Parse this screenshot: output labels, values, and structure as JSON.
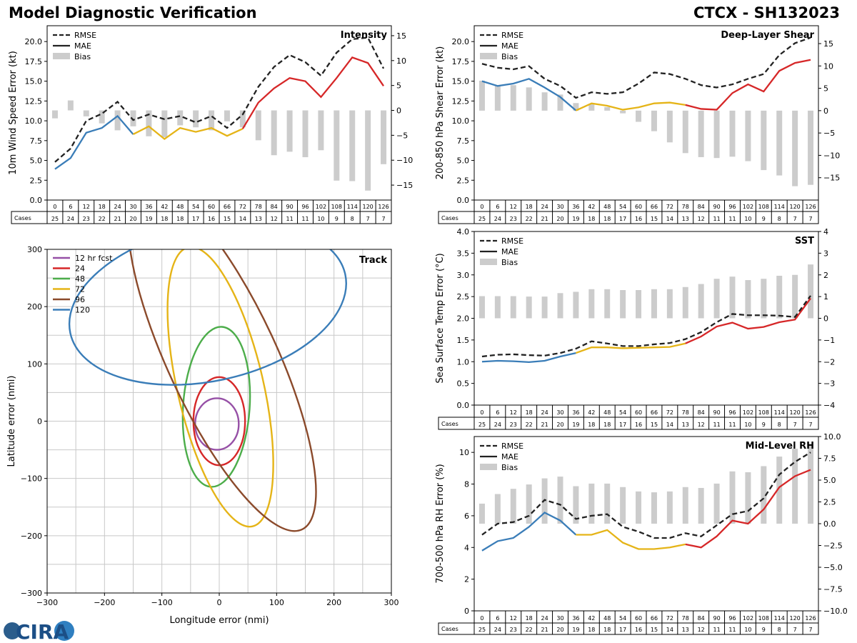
{
  "header": {
    "title": "Model Diagnostic Verification",
    "storm": "CTCX - SH132023"
  },
  "logo": {
    "text": "CIRA"
  },
  "colors": {
    "rmse": "#222222",
    "bias": "#cccccc",
    "blue": "#3a7db8",
    "yellow": "#e5b417",
    "red": "#d62728",
    "purple": "#9650a6",
    "green": "#4cad4a",
    "brown": "#8b4a2b",
    "grid": "#c8c8c8"
  },
  "chart_data": [
    {
      "id": "intensity",
      "type": "line",
      "title": "Intensity",
      "ylabel": "10m Wind Speed Error (kt)",
      "ylim": [
        0,
        22
      ],
      "yticks": [
        0,
        2.5,
        5,
        7.5,
        10,
        12.5,
        15,
        17.5,
        20
      ],
      "ytick_labels": [
        "0.0",
        "2.5",
        "5.0",
        "7.5",
        "10.0",
        "12.5",
        "15.0",
        "17.5",
        "20.0"
      ],
      "y2lim": [
        -18,
        17
      ],
      "y2ticks": [
        -15,
        -10,
        -5,
        0,
        5,
        10,
        15
      ],
      "y2tick_labels": [
        "−15",
        "−10",
        "−5",
        "0",
        "5",
        "10",
        "15"
      ],
      "legend": [
        "RMSE",
        "MAE",
        "Bias"
      ],
      "x": [
        0,
        6,
        12,
        18,
        24,
        30,
        36,
        42,
        48,
        54,
        60,
        66,
        72,
        78,
        84,
        90,
        96,
        102,
        108,
        114,
        120,
        126
      ],
      "cases": [
        25,
        24,
        23,
        22,
        21,
        20,
        19,
        18,
        18,
        17,
        16,
        15,
        14,
        13,
        12,
        11,
        11,
        10,
        9,
        8,
        7,
        7
      ],
      "rmse": [
        4.8,
        6.5,
        10.0,
        10.9,
        12.4,
        10.1,
        10.8,
        10.2,
        10.6,
        9.8,
        10.6,
        9.1,
        10.8,
        14.3,
        16.8,
        18.3,
        17.4,
        15.7,
        18.6,
        20.3,
        20.5,
        16.6
      ],
      "mae": [
        3.9,
        5.3,
        8.5,
        9.1,
        10.6,
        8.3,
        9.3,
        7.7,
        9.1,
        8.6,
        9.1,
        8.1,
        9.0,
        12.3,
        14.1,
        15.4,
        15.0,
        13.0,
        15.4,
        18.0,
        17.3,
        14.4
      ],
      "bias": [
        -1.6,
        2.0,
        -1.2,
        -2.6,
        -4.0,
        -3.2,
        -5.2,
        -5.4,
        -3.0,
        -3.4,
        -4.0,
        -2.2,
        -3.4,
        -6.0,
        -9.0,
        -8.3,
        -9.4,
        -8.0,
        -14.1,
        -14.2,
        -16.1,
        -10.8
      ],
      "mae_color_breaks": [
        [
          0,
          30,
          "blue"
        ],
        [
          30,
          72,
          "yellow"
        ],
        [
          72,
          126,
          "red"
        ]
      ]
    },
    {
      "id": "shear",
      "type": "line",
      "title": "Deep-Layer Shear",
      "ylabel": "200-850 hPa Shear Error (kt)",
      "ylim": [
        0,
        22
      ],
      "yticks": [
        0,
        2.5,
        5,
        7.5,
        10,
        12.5,
        15,
        17.5,
        20
      ],
      "ytick_labels": [
        "0.0",
        "2.5",
        "5.0",
        "7.5",
        "10.0",
        "12.5",
        "15.0",
        "17.5",
        "20.0"
      ],
      "y2lim": [
        -20,
        19
      ],
      "y2ticks": [
        -15,
        -10,
        -5,
        0,
        5,
        10,
        15
      ],
      "y2tick_labels": [
        "−15",
        "−10",
        "−5",
        "0",
        "5",
        "10",
        "15"
      ],
      "legend": [
        "RMSE",
        "MAE",
        "Bias"
      ],
      "x": [
        0,
        6,
        12,
        18,
        24,
        30,
        36,
        42,
        48,
        54,
        60,
        66,
        72,
        78,
        84,
        90,
        96,
        102,
        108,
        114,
        120,
        126
      ],
      "cases": [
        25,
        24,
        23,
        22,
        21,
        20,
        19,
        18,
        18,
        17,
        16,
        15,
        14,
        13,
        12,
        11,
        11,
        10,
        9,
        8,
        7,
        7
      ],
      "rmse": [
        17.2,
        16.7,
        16.5,
        16.9,
        15.3,
        14.4,
        12.9,
        13.6,
        13.4,
        13.6,
        14.7,
        16.1,
        15.9,
        15.3,
        14.5,
        14.2,
        14.6,
        15.3,
        15.9,
        18.3,
        19.8,
        20.5
      ],
      "mae": [
        15.0,
        14.4,
        14.7,
        15.3,
        14.2,
        13.0,
        11.3,
        12.2,
        11.9,
        11.4,
        11.7,
        12.2,
        12.3,
        12.0,
        11.5,
        11.4,
        13.5,
        14.6,
        13.7,
        16.3,
        17.3,
        17.7
      ],
      "bias": [
        6.7,
        5.6,
        5.7,
        5.2,
        4.1,
        3.6,
        1.7,
        1.5,
        0.8,
        -0.6,
        -2.5,
        -4.6,
        -7.1,
        -9.5,
        -10.4,
        -10.6,
        -10.3,
        -11.3,
        -13.3,
        -14.5,
        -16.9,
        -16.6
      ],
      "mae_color_breaks": [
        [
          0,
          36,
          "blue"
        ],
        [
          36,
          78,
          "yellow"
        ],
        [
          78,
          126,
          "red"
        ]
      ]
    },
    {
      "id": "sst",
      "type": "line",
      "title": "SST",
      "ylabel": "Sea Surface Temp Error (°C)",
      "ylim": [
        0,
        4
      ],
      "yticks": [
        0,
        0.5,
        1,
        1.5,
        2,
        2.5,
        3,
        3.5,
        4
      ],
      "ytick_labels": [
        "0.0",
        "0.5",
        "1.0",
        "1.5",
        "2.0",
        "2.5",
        "3.0",
        "3.5",
        "4.0"
      ],
      "y2lim": [
        -4,
        4
      ],
      "y2ticks": [
        -4,
        -3,
        -2,
        -1,
        0,
        1,
        2,
        3,
        4
      ],
      "y2tick_labels": [
        "−4",
        "−3",
        "−2",
        "−1",
        "0",
        "1",
        "2",
        "3",
        "4"
      ],
      "legend": [
        "RMSE",
        "MAE",
        "Bias"
      ],
      "x": [
        0,
        6,
        12,
        18,
        24,
        30,
        36,
        42,
        48,
        54,
        60,
        66,
        72,
        78,
        84,
        90,
        96,
        102,
        108,
        114,
        120,
        126
      ],
      "cases": [
        25,
        24,
        23,
        22,
        21,
        20,
        19,
        18,
        18,
        17,
        16,
        15,
        14,
        13,
        12,
        11,
        11,
        10,
        9,
        8,
        7,
        7
      ],
      "rmse": [
        1.12,
        1.16,
        1.17,
        1.15,
        1.14,
        1.2,
        1.3,
        1.47,
        1.42,
        1.36,
        1.36,
        1.4,
        1.43,
        1.52,
        1.68,
        1.91,
        2.1,
        2.07,
        2.07,
        2.06,
        2.03,
        2.52
      ],
      "mae": [
        1.0,
        1.02,
        1.01,
        0.99,
        1.02,
        1.12,
        1.2,
        1.33,
        1.33,
        1.31,
        1.32,
        1.33,
        1.34,
        1.42,
        1.58,
        1.81,
        1.9,
        1.76,
        1.8,
        1.91,
        1.97,
        2.46
      ],
      "bias": [
        1.02,
        1.02,
        1.02,
        1.0,
        1.0,
        1.16,
        1.22,
        1.34,
        1.34,
        1.3,
        1.3,
        1.34,
        1.34,
        1.44,
        1.58,
        1.82,
        1.92,
        1.76,
        1.82,
        1.96,
        2.0,
        2.48
      ],
      "mae_color_breaks": [
        [
          0,
          36,
          "blue"
        ],
        [
          36,
          78,
          "yellow"
        ],
        [
          78,
          126,
          "red"
        ]
      ]
    },
    {
      "id": "rh",
      "type": "line",
      "title": "Mid-Level RH",
      "ylabel": "700-500 hPa RH Error (%)",
      "ylim": [
        0,
        11
      ],
      "yticks": [
        0,
        2,
        4,
        6,
        8,
        10
      ],
      "ytick_labels": [
        "0",
        "2",
        "4",
        "6",
        "8",
        "10"
      ],
      "y2lim": [
        -10,
        10
      ],
      "y2ticks": [
        -10,
        -7.5,
        -5,
        -2.5,
        0,
        2.5,
        5,
        7.5,
        10
      ],
      "y2tick_labels": [
        "−10.0",
        "−7.5",
        "−5.0",
        "−2.5",
        "0.0",
        "2.5",
        "5.0",
        "7.5",
        "10.0"
      ],
      "legend": [
        "RMSE",
        "MAE",
        "Bias"
      ],
      "x": [
        0,
        6,
        12,
        18,
        24,
        30,
        36,
        42,
        48,
        54,
        60,
        66,
        72,
        78,
        84,
        90,
        96,
        102,
        108,
        114,
        120,
        126
      ],
      "cases": [
        25,
        24,
        23,
        22,
        21,
        20,
        19,
        18,
        18,
        17,
        16,
        15,
        14,
        13,
        12,
        11,
        11,
        10,
        9,
        8,
        7,
        7
      ],
      "rmse": [
        4.8,
        5.5,
        5.6,
        6.0,
        7.0,
        6.7,
        5.8,
        6.0,
        6.1,
        5.3,
        5.0,
        4.6,
        4.6,
        4.9,
        4.7,
        5.4,
        6.1,
        6.3,
        7.1,
        8.6,
        9.4,
        10.0
      ],
      "mae": [
        3.8,
        4.4,
        4.6,
        5.3,
        6.2,
        5.7,
        4.8,
        4.8,
        5.1,
        4.3,
        3.9,
        3.9,
        4.0,
        4.2,
        4.0,
        4.7,
        5.7,
        5.5,
        6.4,
        7.8,
        8.5,
        8.9
      ],
      "bias": [
        2.3,
        3.4,
        4.0,
        4.5,
        5.2,
        5.4,
        4.3,
        4.6,
        4.6,
        4.2,
        3.7,
        3.6,
        3.7,
        4.2,
        4.1,
        4.6,
        6.0,
        5.9,
        6.6,
        7.7,
        8.6,
        9.2
      ],
      "mae_color_breaks": [
        [
          0,
          36,
          "blue"
        ],
        [
          36,
          78,
          "yellow"
        ],
        [
          78,
          126,
          "red"
        ]
      ]
    },
    {
      "id": "track",
      "type": "scatter",
      "title": "Track",
      "xlabel": "Longitude error (nmi)",
      "ylabel": "Latitude error (nmi)",
      "xlim": [
        -300,
        300
      ],
      "ylim": [
        -300,
        300
      ],
      "ticks": [
        -300,
        -200,
        -100,
        0,
        100,
        200,
        300
      ],
      "tick_labels": [
        "−300",
        "−200",
        "−100",
        "0",
        "100",
        "200",
        "300"
      ],
      "ellipses": [
        {
          "label": "12 hr fcst",
          "color": "purple",
          "cx": -4,
          "cy": -5,
          "rx": 38,
          "ry": 45,
          "rot": 0
        },
        {
          "label": "24",
          "color": "red",
          "cx": 0,
          "cy": 0,
          "rx": 45,
          "ry": 77,
          "rot": 0
        },
        {
          "label": "48",
          "color": "green",
          "cx": -5,
          "cy": 25,
          "rx": 58,
          "ry": 140,
          "rot": 4
        },
        {
          "label": "72",
          "color": "yellow",
          "cx": 2,
          "cy": 60,
          "rx": 75,
          "ry": 250,
          "rot": -13
        },
        {
          "label": "96",
          "color": "brown",
          "cx": 5,
          "cy": 110,
          "rx": 95,
          "ry": 330,
          "rot": -25
        },
        {
          "label": "120",
          "color": "blue",
          "cx": -20,
          "cy": 205,
          "rx": 245,
          "ry": 135,
          "rot": -12
        }
      ]
    }
  ]
}
